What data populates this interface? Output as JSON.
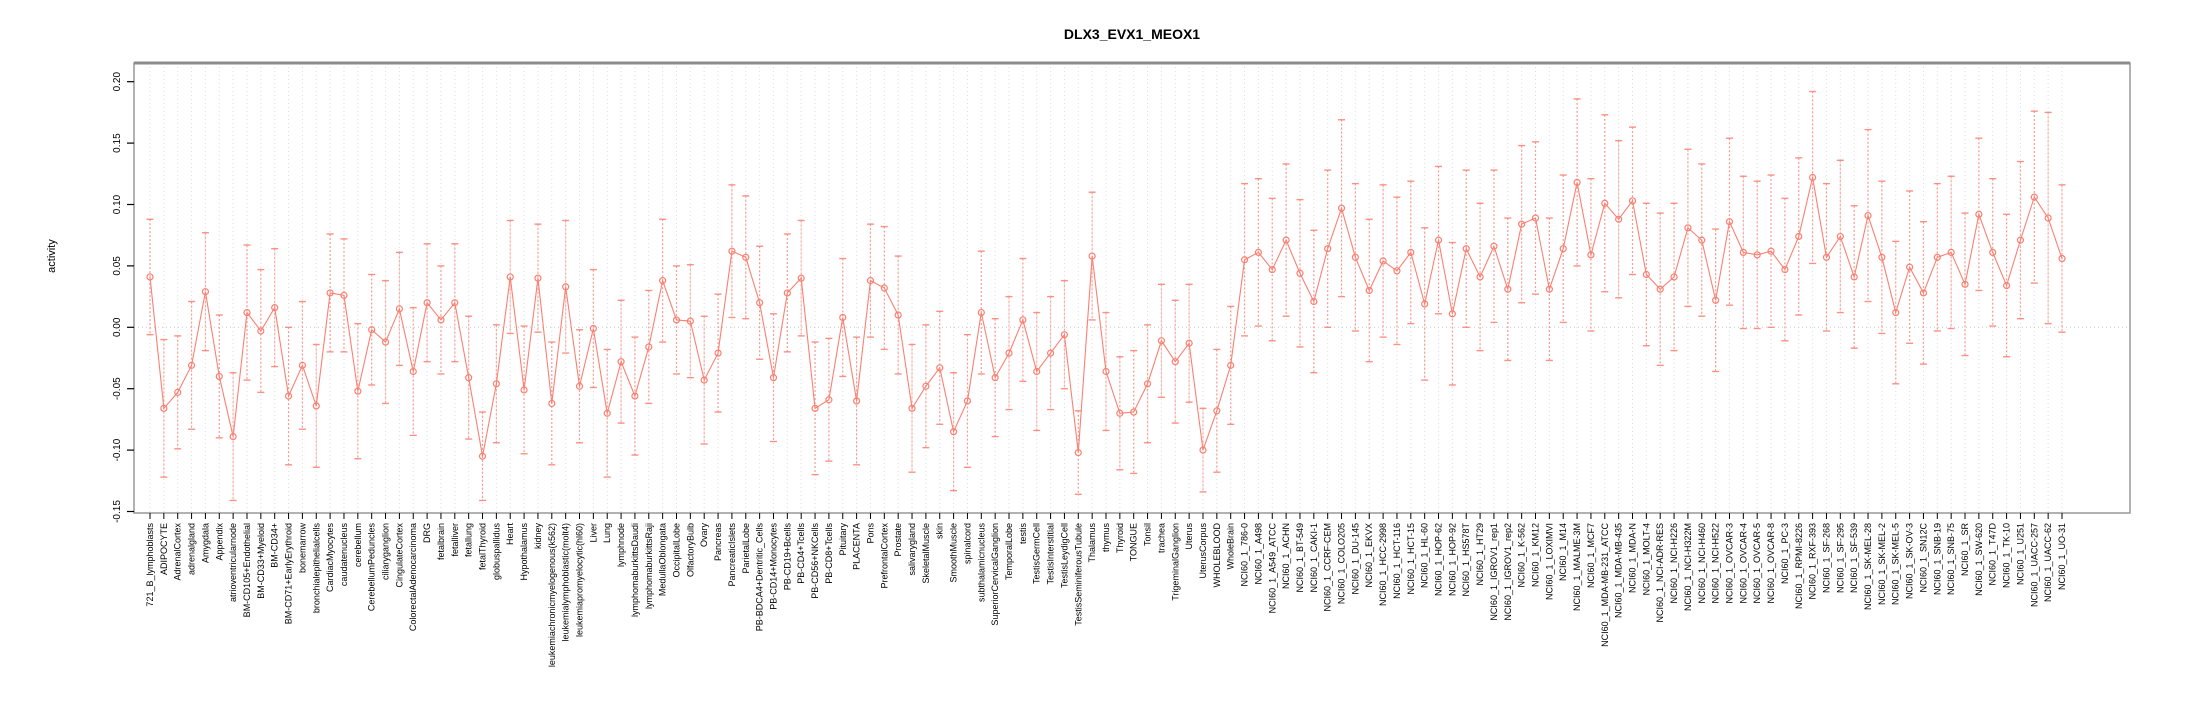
{
  "chart_data": {
    "type": "line",
    "title": "DLX3_EVX1_MEOX1",
    "ylabel": "activity",
    "xlabel": "",
    "ylim": [
      -0.15,
      0.2
    ],
    "ytick_labels": [
      "-0.15",
      "-0.10",
      "-0.05",
      "0.00",
      "0.05",
      "0.10",
      "0.15",
      "0.20"
    ],
    "ytick_values": [
      -0.15,
      -0.1,
      -0.05,
      0.0,
      0.05,
      0.1,
      0.15,
      0.2
    ],
    "grid": "vertical dotted gridline at every category; dotted horizontal line at 0",
    "legend_position": "none",
    "marker": "open-circle",
    "error_bar_style": "dashed stem with caps",
    "colors": {
      "line": "#FA8072",
      "marker": "#FA8072",
      "error_bar": "#FA8072",
      "gridline": "#DDDDDD",
      "zero_line": "#CCCCCC",
      "frame": "#999999",
      "axis": "#000000",
      "text": "#000000"
    },
    "categories": [
      "721_B_lymphoblasts",
      "ADIPOCYTE",
      "AdrenalCortex",
      "adrenalgland",
      "Amygdala",
      "Appendix",
      "atrioventricularnode",
      "BM-CD105+Endothelial",
      "BM-CD33+Myeloid",
      "BM-CD34+",
      "BM-CD71+EarlyErythroid",
      "bonemarrow",
      "bronchialepithelialcells",
      "CardiacMyocytes",
      "caudatenucleus",
      "cerebellum",
      "CerebellumPeduncles",
      "ciliaryganglion",
      "CingulateCortex",
      "ColorectalAdenocarcinoma",
      "DRG",
      "fetalbrain",
      "fetalliver",
      "fetallung",
      "fetalThyroid",
      "globuspallidus",
      "Heart",
      "Hypothalamus",
      "kidney",
      "leukemiachronicmyelogenous(k562)",
      "leukemialymphoblastic(molt4)",
      "leukemiapromyelocytic(hl60)",
      "Liver",
      "Lung",
      "lymphnode",
      "lymphomaburkittsDaudi",
      "lymphomaburkittsRaji",
      "MedullaOblongata",
      "OccipitalLobe",
      "OlfactoryBulb",
      "Ovary",
      "Pancreas",
      "PancreaticIslets",
      "ParietalLobe",
      "PB-BDCA4+Dentritic_Cells",
      "PB-CD14+Monocytes",
      "PB-CD19+Bcells",
      "PB-CD4+Tcells",
      "PB-CD56+NKCells",
      "PB-CD8+Tcells",
      "Pituitary",
      "PLACENTA",
      "Pons",
      "PrefrontalCortex",
      "Prostate",
      "salivarygland",
      "SkeletalMuscle",
      "skin",
      "SmoothMuscle",
      "spinalcord",
      "subthalamicnucleus",
      "SuperiorCervicalGanglion",
      "TemporalLobe",
      "testis",
      "TestisGermCell",
      "TestisInterstitial",
      "TestisLeydigCell",
      "TestisSeminiferousTubule",
      "Thalamus",
      "thymus",
      "Thyroid",
      "TONGUE",
      "Tonsil",
      "trachea",
      "TrigeminalGanglion",
      "Uterus",
      "UterusCorpus",
      "WHOLEBLOOD",
      "WholeBrain",
      "NCI60_1_786-0",
      "NCI60_1_A498",
      "NCI60_1_A549_ATCC",
      "NCI60_1_ACHN",
      "NCI60_1_BT-549",
      "NCI60_1_CAKI-1",
      "NCI60_1_CCRF-CEM",
      "NCI60_1_COLO205",
      "NCI60_1_DU-145",
      "NCI60_1_EKVX",
      "NCI60_1_HCC-2998",
      "NCI60_1_HCT-116",
      "NCI60_1_HCT-15",
      "NCI60_1_HL-60",
      "NCI60_1_HOP-62",
      "NCI60_1_HOP-92",
      "NCI60_1_HS578T",
      "NCI60_1_HT29",
      "NCI60_1_IGROV1_rep1",
      "NCI60_1_IGROV1_rep2",
      "NCI60_1_K-562",
      "NCI60_1_KM12",
      "NCI60_1_LOXIMVI",
      "NCI60_1_M14",
      "NCI60_1_MALME-3M",
      "NCI60_1_MCF7",
      "NCI60_1_MDA-MB-231_ATCC",
      "NCI60_1_MDA-MB-435",
      "NCI60_1_MDA-N",
      "NCI60_1_MOLT-4",
      "NCI60_1_NCI-ADR-RES",
      "NCI60_1_NCI-H226",
      "NCI60_1_NCI-H322M",
      "NCI60_1_NCI-H460",
      "NCI60_1_NCI-H522",
      "NCI60_1_OVCAR-3",
      "NCI60_1_OVCAR-4",
      "NCI60_1_OVCAR-5",
      "NCI60_1_OVCAR-8",
      "NCI60_1_PC-3",
      "NCI60_1_RPMI-8226",
      "NCI60_1_RXF-393",
      "NCI60_1_SF-268",
      "NCI60_1_SF-295",
      "NCI60_1_SF-539",
      "NCI60_1_SK-MEL-28",
      "NCI60_1_SK-MEL-2",
      "NCI60_1_SK-MEL-5",
      "NCI60_1_SK-OV-3",
      "NCI60_1_SN12C",
      "NCI60_1_SNB-19",
      "NCI60_1_SNB-75",
      "NCI60_1_SR",
      "NCI60_1_SW-620",
      "NCI60_1_T47D",
      "NCI60_1_TK-10",
      "NCI60_1_U251",
      "NCI60_1_UACC-257",
      "NCI60_1_UACC-62",
      "NCI60_1_UO-31"
    ],
    "series": [
      {
        "name": "activity",
        "values": [
          0.041,
          -0.066,
          -0.053,
          -0.031,
          0.029,
          -0.04,
          -0.089,
          0.012,
          -0.003,
          0.016,
          -0.056,
          -0.031,
          -0.064,
          0.028,
          0.026,
          -0.052,
          -0.002,
          -0.012,
          0.015,
          -0.036,
          0.02,
          0.006,
          0.02,
          -0.041,
          -0.105,
          -0.046,
          0.041,
          -0.051,
          0.04,
          -0.062,
          0.033,
          -0.048,
          -0.001,
          -0.07,
          -0.028,
          -0.056,
          -0.016,
          0.038,
          0.006,
          0.005,
          -0.043,
          -0.021,
          0.062,
          0.057,
          0.02,
          -0.041,
          0.028,
          0.04,
          -0.066,
          -0.059,
          0.008,
          -0.06,
          0.038,
          0.032,
          0.01,
          -0.066,
          -0.048,
          -0.033,
          -0.085,
          -0.06,
          0.012,
          -0.041,
          -0.021,
          0.006,
          -0.036,
          -0.021,
          -0.006,
          -0.102,
          0.058,
          -0.036,
          -0.07,
          -0.069,
          -0.046,
          -0.011,
          -0.028,
          -0.013,
          -0.1,
          -0.068,
          -0.031,
          0.055,
          0.061,
          0.047,
          0.071,
          0.044,
          0.021,
          0.064,
          0.097,
          0.057,
          0.03,
          0.054,
          0.046,
          0.061,
          0.019,
          0.071,
          0.011,
          0.064,
          0.041,
          0.066,
          0.031,
          0.084,
          0.089,
          0.031,
          0.064,
          0.118,
          0.059,
          0.101,
          0.088,
          0.103,
          0.043,
          0.031,
          0.041,
          0.081,
          0.071,
          0.022,
          0.086,
          0.061,
          0.059,
          0.062,
          0.047,
          0.074,
          0.122,
          0.057,
          0.074,
          0.041,
          0.091,
          0.057,
          0.012,
          0.049,
          0.028,
          0.057,
          0.061,
          0.035,
          0.092,
          0.061,
          0.034,
          0.071,
          0.106,
          0.089,
          0.056
        ],
        "errors": [
          0.047,
          0.056,
          0.046,
          0.052,
          0.048,
          0.05,
          0.052,
          0.055,
          0.05,
          0.048,
          0.056,
          0.052,
          0.05,
          0.048,
          0.046,
          0.055,
          0.045,
          0.05,
          0.046,
          0.052,
          0.048,
          0.044,
          0.048,
          0.05,
          0.036,
          0.048,
          0.046,
          0.052,
          0.044,
          0.05,
          0.054,
          0.046,
          0.048,
          0.052,
          0.05,
          0.048,
          0.046,
          0.05,
          0.044,
          0.046,
          0.052,
          0.048,
          0.054,
          0.05,
          0.046,
          0.052,
          0.048,
          0.047,
          0.054,
          0.05,
          0.048,
          0.052,
          0.046,
          0.05,
          0.048,
          0.052,
          0.05,
          0.046,
          0.048,
          0.054,
          0.05,
          0.048,
          0.046,
          0.05,
          0.048,
          0.046,
          0.044,
          0.034,
          0.052,
          0.048,
          0.046,
          0.05,
          0.048,
          0.046,
          0.05,
          0.048,
          0.034,
          0.05,
          0.048,
          0.062,
          0.06,
          0.058,
          0.062,
          0.06,
          0.058,
          0.064,
          0.072,
          0.06,
          0.058,
          0.062,
          0.06,
          0.058,
          0.062,
          0.06,
          0.058,
          0.064,
          0.06,
          0.062,
          0.058,
          0.064,
          0.062,
          0.058,
          0.06,
          0.068,
          0.062,
          0.072,
          0.064,
          0.06,
          0.058,
          0.062,
          0.06,
          0.064,
          0.062,
          0.058,
          0.068,
          0.062,
          0.06,
          0.062,
          0.058,
          0.064,
          0.07,
          0.06,
          0.062,
          0.058,
          0.07,
          0.062,
          0.058,
          0.062,
          0.058,
          0.06,
          0.062,
          0.058,
          0.062,
          0.06,
          0.058,
          0.064,
          0.07,
          0.086,
          0.06
        ]
      }
    ]
  }
}
